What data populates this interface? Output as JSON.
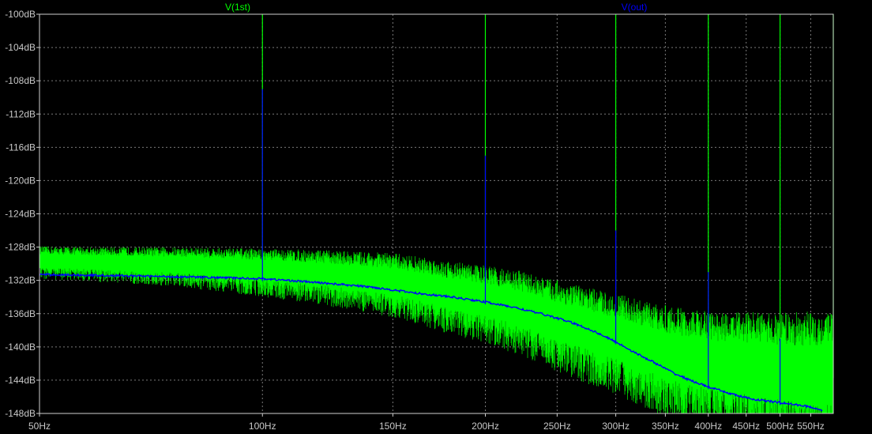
{
  "chart_data": {
    "type": "line",
    "title": "",
    "xlabel": "",
    "ylabel": "",
    "x_scale": "log",
    "xlim": [
      50,
      590
    ],
    "ylim": [
      -148,
      -100
    ],
    "grid": true,
    "legend": "top",
    "x_ticks": [
      {
        "value": 50,
        "label": "50Hz"
      },
      {
        "value": 100,
        "label": "100Hz"
      },
      {
        "value": 150,
        "label": "150Hz"
      },
      {
        "value": 200,
        "label": "200Hz"
      },
      {
        "value": 250,
        "label": "250Hz"
      },
      {
        "value": 300,
        "label": "300Hz"
      },
      {
        "value": 350,
        "label": "350Hz"
      },
      {
        "value": 400,
        "label": "400Hz"
      },
      {
        "value": 450,
        "label": "450Hz"
      },
      {
        "value": 500,
        "label": "500Hz"
      },
      {
        "value": 550,
        "label": "550Hz"
      }
    ],
    "y_ticks": [
      {
        "value": -100,
        "label": "-100dB"
      },
      {
        "value": -104,
        "label": "-104dB"
      },
      {
        "value": -108,
        "label": "-108dB"
      },
      {
        "value": -112,
        "label": "-112dB"
      },
      {
        "value": -116,
        "label": "-116dB"
      },
      {
        "value": -120,
        "label": "-120dB"
      },
      {
        "value": -124,
        "label": "-124dB"
      },
      {
        "value": -128,
        "label": "-128dB"
      },
      {
        "value": -132,
        "label": "-132dB"
      },
      {
        "value": -136,
        "label": "-136dB"
      },
      {
        "value": -140,
        "label": "-140dB"
      },
      {
        "value": -144,
        "label": "-144dB"
      },
      {
        "value": -148,
        "label": "-148dB"
      }
    ],
    "series": [
      {
        "name": "V(1st)",
        "color": "#00ff00",
        "floor_x": [
          50,
          80,
          100,
          120,
          150,
          175,
          200,
          225,
          250,
          275,
          300,
          325,
          350,
          375,
          400,
          425,
          450,
          475,
          500,
          525,
          550,
          575,
          590
        ],
        "floor_y": [
          -129.5,
          -130,
          -130.5,
          -131,
          -131.8,
          -133,
          -134,
          -135,
          -136.5,
          -137.5,
          -138.5,
          -139.5,
          -140.5,
          -141,
          -141.5,
          -141.8,
          -142,
          -142.2,
          -142.4,
          -142.5,
          -142.6,
          -142.7,
          -142.8
        ],
        "spikes": [
          {
            "x": 100,
            "y": -100
          },
          {
            "x": 200,
            "y": -100
          },
          {
            "x": 300,
            "y": -100
          },
          {
            "x": 400,
            "y": -100
          },
          {
            "x": 500,
            "y": -100
          },
          {
            "x": 590,
            "y": -100
          },
          {
            "x": 250,
            "y": -132
          },
          {
            "x": 350,
            "y": -135
          },
          {
            "x": 450,
            "y": -136
          },
          {
            "x": 550,
            "y": -136
          }
        ]
      },
      {
        "name": "V(out)",
        "color": "#0000ff",
        "x": [
          50,
          60,
          80,
          100,
          120,
          140,
          160,
          180,
          200,
          220,
          240,
          260,
          280,
          300,
          320,
          340,
          360,
          380,
          400,
          420,
          440,
          460,
          480,
          500,
          520,
          540,
          560,
          580
        ],
        "y": [
          -131.3,
          -131.4,
          -131.6,
          -131.8,
          -132.3,
          -132.8,
          -133.5,
          -134,
          -134.6,
          -135.3,
          -136.1,
          -137,
          -138.1,
          -139.4,
          -140.8,
          -142,
          -143.2,
          -144.1,
          -144.8,
          -145.4,
          -145.9,
          -146.3,
          -146.5,
          -146.7,
          -146.9,
          -147.1,
          -147.4,
          -147.9
        ],
        "spikes": [
          {
            "x": 100,
            "y": -109
          },
          {
            "x": 200,
            "y": -117
          },
          {
            "x": 300,
            "y": -126
          },
          {
            "x": 400,
            "y": -131
          },
          {
            "x": 500,
            "y": -139
          }
        ]
      }
    ]
  }
}
